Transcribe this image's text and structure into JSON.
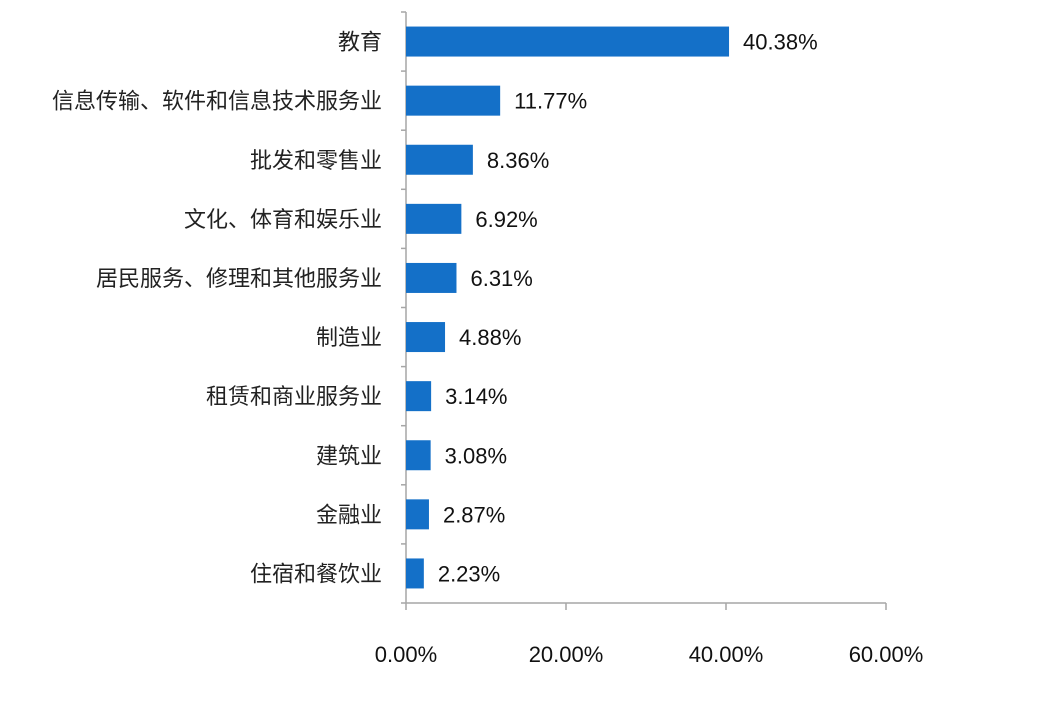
{
  "chart_data": {
    "type": "bar",
    "orientation": "horizontal",
    "title": "",
    "xlabel": "",
    "ylabel": "",
    "categories": [
      "教育",
      "信息传输、软件和信息技术服务业",
      "批发和零售业",
      "文化、体育和娱乐业",
      "居民服务、修理和其他服务业",
      "制造业",
      "租赁和商业服务业",
      "建筑业",
      "金融业",
      "住宿和餐饮业"
    ],
    "values": [
      40.38,
      11.77,
      8.36,
      6.92,
      6.31,
      4.88,
      3.14,
      3.08,
      2.87,
      2.23
    ],
    "value_labels": [
      "40.38%",
      "11.77%",
      "8.36%",
      "6.92%",
      "6.31%",
      "4.88%",
      "3.14%",
      "3.08%",
      "2.87%",
      "2.23%"
    ],
    "xlim": [
      0,
      60
    ],
    "xticks": [
      0,
      20,
      40,
      60
    ],
    "xtick_labels": [
      "0.00%",
      "20.00%",
      "40.00%",
      "60.00%"
    ],
    "bar_color": "#1470c8",
    "axis_color": "#a6a6a6",
    "grid": false,
    "legend": "none"
  }
}
